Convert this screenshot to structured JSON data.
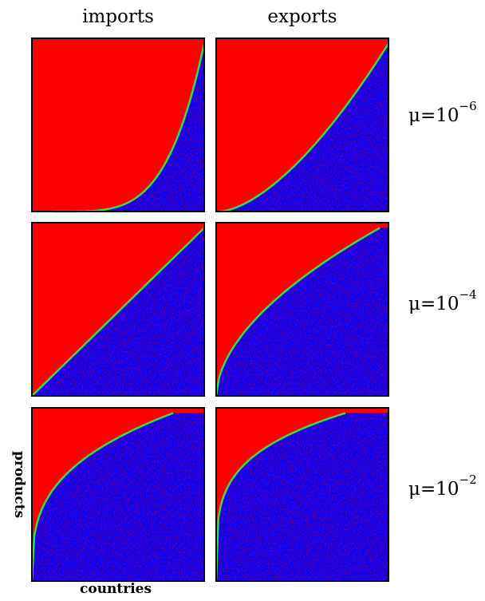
{
  "columns": [
    {
      "label": "imports"
    },
    {
      "label": "exports"
    }
  ],
  "rows": [
    {
      "symbol": "μ",
      "eq": "=",
      "base": "10",
      "exponent": "−6"
    },
    {
      "symbol": "μ",
      "eq": "=",
      "base": "10",
      "exponent": "−4"
    },
    {
      "symbol": "μ",
      "eq": "=",
      "base": "10",
      "exponent": "−2"
    }
  ],
  "axes": {
    "x_label": "countries",
    "y_label": "products"
  },
  "colors": {
    "upper_region": "#ff0000",
    "lower_region": "#0000ff",
    "curve": "#33dd55",
    "frame": "#000000"
  },
  "panels": [
    {
      "row": 0,
      "col": 0,
      "curve": "convex-steep"
    },
    {
      "row": 0,
      "col": 1,
      "curve": "convex-mild"
    },
    {
      "row": 1,
      "col": 0,
      "curve": "linear"
    },
    {
      "row": 1,
      "col": 1,
      "curve": "concave-mild"
    },
    {
      "row": 2,
      "col": 0,
      "curve": "concave-steep"
    },
    {
      "row": 2,
      "col": 1,
      "curve": "concave-very-steep"
    }
  ]
}
